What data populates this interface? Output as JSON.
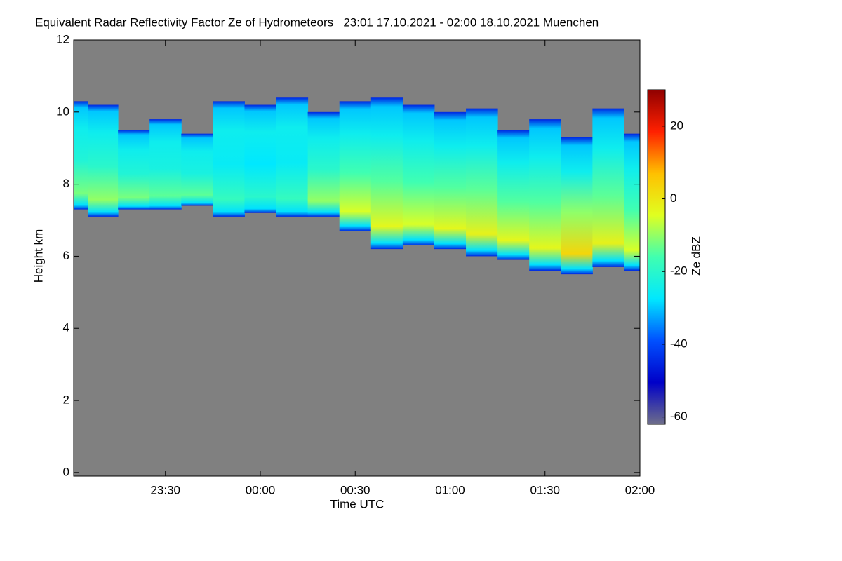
{
  "chart_data": {
    "type": "radar-curtain",
    "title": "Equivalent Radar Reflectivity Factor Ze of Hydrometeors   23:01 17.10.2021 - 02:00 18.10.2021 Muenchen",
    "x_label": "Time UTC",
    "y_label": "Height km",
    "colorbar_label": "Ze dBZ",
    "x": [
      -59,
      -50,
      -40,
      -30,
      -20,
      -10,
      0,
      10,
      20,
      30,
      40,
      50,
      60,
      70,
      80,
      90,
      100,
      110,
      120
    ],
    "top": [
      10.3,
      10.2,
      9.5,
      9.8,
      9.4,
      10.3,
      10.2,
      10.4,
      10.0,
      10.3,
      10.4,
      10.2,
      10.0,
      10.1,
      9.5,
      9.8,
      9.3,
      10.1,
      9.4
    ],
    "base": [
      7.3,
      7.1,
      7.3,
      7.3,
      7.4,
      7.1,
      7.2,
      7.1,
      7.1,
      6.7,
      6.2,
      6.3,
      6.2,
      6.0,
      5.9,
      5.6,
      5.5,
      5.7,
      5.6
    ],
    "core_ze": [
      -12,
      -10,
      -12,
      -14,
      -14,
      -18,
      -20,
      -18,
      -10,
      -5,
      -3,
      -5,
      -3,
      -2,
      -3,
      -3,
      3,
      -2,
      -5
    ],
    "xlim": [
      -59,
      120
    ],
    "xticks": [
      {
        "value": -30,
        "label": "23:30"
      },
      {
        "value": 0,
        "label": "00:00"
      },
      {
        "value": 30,
        "label": "00:30"
      },
      {
        "value": 60,
        "label": "01:00"
      },
      {
        "value": 90,
        "label": "01:30"
      },
      {
        "value": 120,
        "label": "02:00"
      }
    ],
    "ylim": [
      -0.1,
      12
    ],
    "yticks": [
      0,
      2,
      4,
      6,
      8,
      10,
      12
    ],
    "zlim": [
      -62,
      30
    ],
    "zticks": [
      -60,
      -40,
      -20,
      0,
      20
    ],
    "background_color": "#808080",
    "colormap": [
      "#6e6e8a",
      "#0000c8",
      "#0050ff",
      "#00e8ff",
      "#40ffb0",
      "#e0ff20",
      "#ffc000",
      "#ff2000",
      "#900000"
    ]
  }
}
